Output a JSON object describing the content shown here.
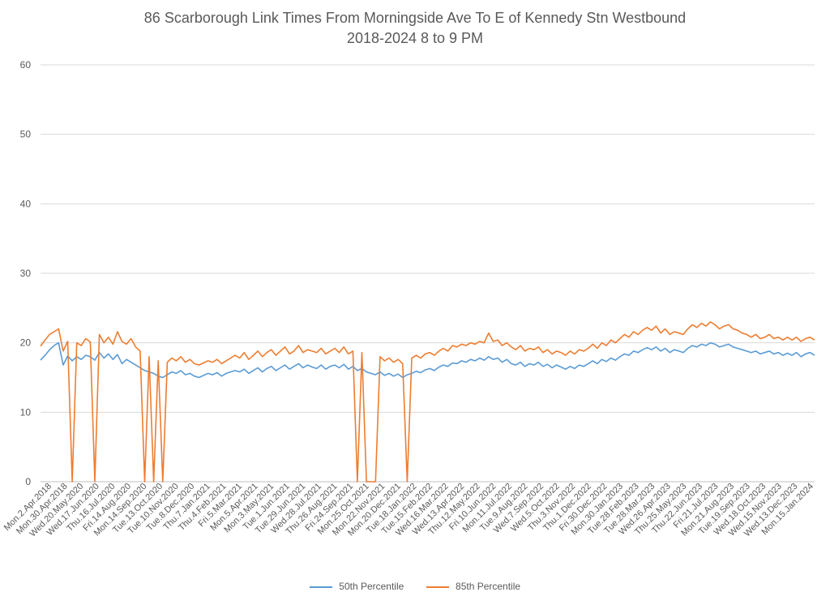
{
  "chart_data": {
    "type": "line",
    "title": "86 Scarborough Link Times From Morningside Ave To E of Kennedy Stn Westbound",
    "subtitle": "2018-2024 8 to 9 PM",
    "ylim": [
      0,
      60
    ],
    "yticks": [
      0,
      10,
      20,
      30,
      40,
      50,
      60
    ],
    "grid": "horizontal",
    "legend_position": "bottom",
    "x_tick_labels": [
      "Mon.2.Apr.2018",
      "Mon.30.Apr.2018",
      "Wed.20.May.2020",
      "Wed.17.Jun.2020",
      "Thu.16.Jul.2020",
      "Fri.14.Aug.2020",
      "Mon.14.Sep.2020",
      "Tue.13.Oct.2020",
      "Tue.10.Nov.2020",
      "Tue.8.Dec.2020",
      "Thu.7.Jan.2021",
      "Thu.4.Feb.2021",
      "Fri.5.Mar.2021",
      "Mon.5.Apr.2021",
      "Mon.3.May.2021",
      "Tue.1.Jun.2021",
      "Tue.29.Jun.2021",
      "Wed.28.Jul.2021",
      "Thu.26.Aug.2021",
      "Fri.24.Sep.2021",
      "Mon.25.Oct.2021",
      "Mon.22.Nov.2021",
      "Mon.20.Dec.2021",
      "Tue.18.Jan.2022",
      "Tue.15.Feb.2022",
      "Wed.16.Mar.2022",
      "Wed.13.Apr.2022",
      "Thu.12.May.2022",
      "Fri.10.Jun.2022",
      "Mon.11.Jul.2022",
      "Tue.9.Aug.2022",
      "Wed.7.Sep.2022",
      "Wed.5.Oct.2022",
      "Thu.3.Nov.2022",
      "Thu.1.Dec.2022",
      "Fri.30.Dec.2022",
      "Mon.30.Jan.2023",
      "Tue.28.Feb.2023",
      "Tue.28.Mar.2023",
      "Wed.26.Apr.2023",
      "Thu.25.May.2023",
      "Thu.22.Jun.2023",
      "Fri.21.Jul.2023",
      "Mon.21.Aug.2023",
      "Tue.19.Sep.2023",
      "Wed.18.Oct.2023",
      "Wed.15.Nov.2023",
      "Wed.13.Dec.2023",
      "Mon.15.Jan.2024"
    ],
    "series": [
      {
        "name": "50th Percentile",
        "color": "#5B9BD5",
        "values": [
          17.5,
          18.2,
          19.0,
          19.6,
          20.0,
          16.8,
          18.1,
          17.4,
          18.0,
          17.6,
          18.2,
          18.0,
          17.5,
          18.6,
          17.8,
          18.4,
          17.6,
          18.3,
          17.0,
          17.6,
          17.2,
          16.8,
          16.4,
          16.0,
          15.8,
          15.6,
          15.2,
          15.0,
          15.4,
          15.8,
          15.6,
          16.0,
          15.4,
          15.6,
          15.2,
          15.0,
          15.3,
          15.6,
          15.4,
          15.7,
          15.2,
          15.6,
          15.8,
          16.0,
          15.8,
          16.2,
          15.6,
          16.0,
          16.4,
          15.8,
          16.3,
          16.6,
          16.0,
          16.4,
          16.8,
          16.2,
          16.6,
          17.0,
          16.4,
          16.8,
          16.5,
          16.3,
          16.8,
          16.2,
          16.6,
          16.8,
          16.4,
          16.9,
          16.2,
          16.6,
          16.0,
          16.3,
          15.8,
          15.6,
          15.4,
          15.8,
          15.3,
          15.6,
          15.2,
          15.5,
          15.0,
          15.4,
          15.6,
          15.9,
          15.7,
          16.1,
          16.3,
          16.0,
          16.5,
          16.8,
          16.6,
          17.1,
          17.0,
          17.4,
          17.2,
          17.6,
          17.4,
          17.8,
          17.5,
          18.0,
          17.6,
          17.8,
          17.2,
          17.6,
          17.0,
          16.8,
          17.2,
          16.6,
          17.0,
          16.8,
          17.2,
          16.6,
          16.9,
          16.4,
          16.8,
          16.5,
          16.2,
          16.6,
          16.3,
          16.8,
          16.6,
          17.0,
          17.4,
          17.0,
          17.6,
          17.3,
          17.8,
          17.5,
          18.0,
          18.4,
          18.2,
          18.8,
          18.6,
          19.0,
          19.3,
          19.0,
          19.4,
          18.8,
          19.2,
          18.6,
          19.0,
          18.8,
          18.6,
          19.2,
          19.6,
          19.4,
          19.8,
          19.6,
          20.0,
          19.8,
          19.4,
          19.6,
          19.8,
          19.4,
          19.2,
          19.0,
          18.8,
          18.6,
          18.8,
          18.4,
          18.6,
          18.8,
          18.4,
          18.6,
          18.2,
          18.5,
          18.2,
          18.6,
          18.0,
          18.4,
          18.6,
          18.2
        ]
      },
      {
        "name": "85th Percentile",
        "color": "#ED7D31",
        "values": [
          19.5,
          20.4,
          21.2,
          21.6,
          22.0,
          18.8,
          20.2,
          0.0,
          20.0,
          19.6,
          20.6,
          20.1,
          0.0,
          21.2,
          20.0,
          20.8,
          19.8,
          21.6,
          20.2,
          19.8,
          20.6,
          19.4,
          18.8,
          0.0,
          18.0,
          0.0,
          17.4,
          0.0,
          17.2,
          17.8,
          17.4,
          18.0,
          17.2,
          17.6,
          17.0,
          16.8,
          17.1,
          17.4,
          17.2,
          17.6,
          17.0,
          17.4,
          17.8,
          18.2,
          17.8,
          18.6,
          17.6,
          18.2,
          18.8,
          18.0,
          18.6,
          19.0,
          18.2,
          18.8,
          19.4,
          18.4,
          18.8,
          19.6,
          18.6,
          19.0,
          18.8,
          18.6,
          19.2,
          18.4,
          18.8,
          19.2,
          18.6,
          19.4,
          18.4,
          18.8,
          0.0,
          18.6,
          0.0,
          0.0,
          0.0,
          18.0,
          17.4,
          17.8,
          17.2,
          17.6,
          17.0,
          0.0,
          17.8,
          18.2,
          17.8,
          18.4,
          18.6,
          18.2,
          18.8,
          19.2,
          18.8,
          19.6,
          19.4,
          19.8,
          19.6,
          20.0,
          19.8,
          20.2,
          20.0,
          21.4,
          20.2,
          20.4,
          19.6,
          20.0,
          19.4,
          19.0,
          19.6,
          18.8,
          19.2,
          19.0,
          19.4,
          18.6,
          19.0,
          18.4,
          18.8,
          18.6,
          18.2,
          18.8,
          18.4,
          19.0,
          18.8,
          19.2,
          19.8,
          19.2,
          20.0,
          19.6,
          20.4,
          20.0,
          20.6,
          21.2,
          20.8,
          21.6,
          21.2,
          21.8,
          22.2,
          21.8,
          22.4,
          21.4,
          22.0,
          21.2,
          21.6,
          21.4,
          21.2,
          22.0,
          22.6,
          22.2,
          22.8,
          22.4,
          23.0,
          22.6,
          22.0,
          22.4,
          22.6,
          22.0,
          21.8,
          21.4,
          21.2,
          20.8,
          21.2,
          20.6,
          20.8,
          21.2,
          20.6,
          20.8,
          20.4,
          20.8,
          20.4,
          20.8,
          20.2,
          20.6,
          20.8,
          20.4
        ]
      }
    ]
  }
}
